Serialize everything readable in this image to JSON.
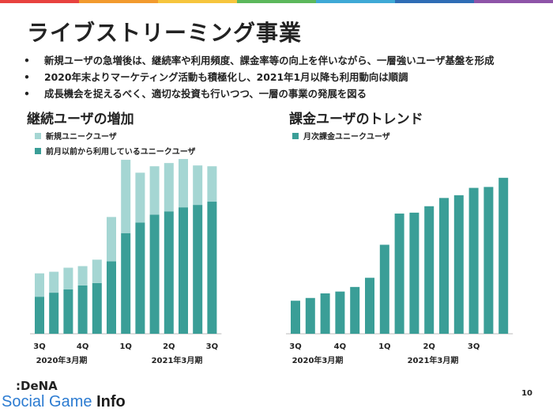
{
  "brand_colors": [
    "#e8423f",
    "#f29a2e",
    "#f6c53d",
    "#5cb85c",
    "#3fa9d6",
    "#2f6db5",
    "#8e54a8"
  ],
  "page": {
    "title": "ライブストリーミング事業",
    "page_number": "10"
  },
  "bullets": [
    {
      "dot": "•",
      "text": "新規ユーザの急増後は、継続率や利用頻度、課金率等の向上を伴いながら、一層強いユーザ基盤を形成"
    },
    {
      "dot": "•",
      "text": "2020年末よりマーケティング活動も積極化し、2021年1月以降も利用動向は順調"
    },
    {
      "dot": "•",
      "text": "成長機会を捉えるべく、適切な投資も行いつつ、一層の事業の発展を図る"
    }
  ],
  "left_section": {
    "title": "継続ユーザの増加"
  },
  "right_section": {
    "title": "課金ユーザのトレンド"
  },
  "logo": {
    "top": ":DeNA",
    "bottom_a": "Social Game ",
    "bottom_b": "Info"
  },
  "chart_data": [
    {
      "type": "bar",
      "stacked": true,
      "x_tick_labels": [
        "3Q",
        "4Q",
        "1Q",
        "2Q",
        "3Q"
      ],
      "period_labels": [
        "2020年3月期",
        "2021年3月期"
      ],
      "series": [
        {
          "name": "前月以前から利用しているユニークユーザ",
          "color": "#3a9e97",
          "values": [
            46,
            51,
            55,
            60,
            63,
            90,
            125,
            138,
            148,
            152,
            157,
            160,
            164
          ]
        },
        {
          "name": "新規ユニークユーザ",
          "color": "#a5d6d3",
          "values": [
            29,
            26,
            27,
            24,
            29,
            55,
            91,
            62,
            60,
            60,
            60,
            49,
            44
          ]
        }
      ],
      "ylim": [
        0,
        220
      ],
      "grid": false
    },
    {
      "type": "bar",
      "x_tick_labels": [
        "3Q",
        "4Q",
        "1Q",
        "2Q",
        "3Q"
      ],
      "period_labels": [
        "2020年3月期",
        "2021年3月期"
      ],
      "series": [
        {
          "name": "月次課金ユニークユーザ",
          "color": "#3a9e97",
          "values": [
            36,
            39,
            44,
            46,
            51,
            61,
            97,
            131,
            132,
            139,
            148,
            151,
            159,
            160,
            170
          ]
        }
      ],
      "ylim": [
        0,
        200
      ],
      "grid": false
    }
  ]
}
